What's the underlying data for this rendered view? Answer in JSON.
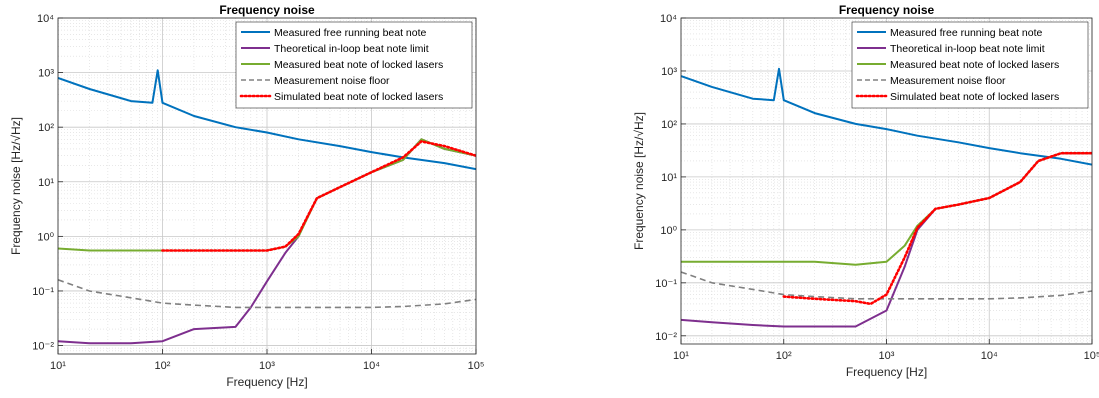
{
  "chart_data": [
    {
      "type": "line",
      "title": "Frequency noise",
      "xlabel": "Frequency [Hz]",
      "ylabel": "Frequency noise [Hz/√Hz]",
      "xscale": "log",
      "yscale": "log",
      "xlim": [
        10,
        100000
      ],
      "ylim": [
        0.007,
        10000
      ],
      "x_ticks": [
        10,
        100,
        1000,
        10000,
        100000
      ],
      "y_ticks": [
        0.01,
        0.1,
        1,
        10,
        100,
        1000,
        10000
      ],
      "grid": true,
      "legend_position": "top-right",
      "series": [
        {
          "name": "Measured free running beat note",
          "color": "#0072bd",
          "style": "solid",
          "x": [
            10,
            20,
            50,
            80,
            90,
            100,
            200,
            500,
            1000,
            2000,
            5000,
            10000,
            20000,
            50000,
            100000
          ],
          "y": [
            800,
            500,
            300,
            280,
            1100,
            280,
            160,
            100,
            80,
            60,
            45,
            35,
            28,
            22,
            17
          ]
        },
        {
          "name": "Theoretical in-loop beat note limit",
          "color": "#7e2f8e",
          "style": "solid",
          "x": [
            10,
            20,
            50,
            100,
            200,
            500,
            700,
            1000,
            1500,
            2000,
            2500,
            3000,
            5000,
            10000,
            20000,
            30000,
            50000,
            100000
          ],
          "y": [
            0.012,
            0.011,
            0.011,
            0.012,
            0.02,
            0.022,
            0.05,
            0.15,
            0.5,
            1.0,
            2.5,
            5,
            8,
            15,
            25,
            60,
            40,
            30
          ]
        },
        {
          "name": "Measured beat note of locked lasers",
          "color": "#77ac30",
          "style": "solid",
          "x": [
            10,
            20,
            50,
            100,
            200,
            500,
            1000,
            1500,
            2000,
            3000,
            5000,
            10000,
            20000,
            30000,
            50000,
            100000
          ],
          "y": [
            0.6,
            0.55,
            0.55,
            0.55,
            0.55,
            0.55,
            0.55,
            0.65,
            1.0,
            5,
            8,
            15,
            25,
            60,
            40,
            30
          ]
        },
        {
          "name": "Measurement noise floor",
          "color": "#808080",
          "style": "dashed",
          "x": [
            10,
            20,
            50,
            100,
            200,
            500,
            1000,
            2000,
            5000,
            10000,
            20000,
            50000,
            100000
          ],
          "y": [
            0.16,
            0.1,
            0.075,
            0.06,
            0.055,
            0.05,
            0.05,
            0.05,
            0.05,
            0.05,
            0.052,
            0.058,
            0.07
          ]
        },
        {
          "name": "Simulated beat note of locked lasers",
          "color": "#ff0000",
          "style": "dotted",
          "x": [
            100,
            200,
            500,
            1000,
            1500,
            2000,
            3000,
            5000,
            10000,
            20000,
            30000,
            50000,
            100000
          ],
          "y": [
            0.55,
            0.55,
            0.55,
            0.55,
            0.65,
            1.1,
            5,
            8,
            15,
            28,
            55,
            45,
            30
          ]
        }
      ]
    },
    {
      "type": "line",
      "title": "Frequency noise",
      "xlabel": "Frequency [Hz]",
      "ylabel": "Frequency noise [Hz/√Hz]",
      "xscale": "log",
      "yscale": "log",
      "xlim": [
        10,
        100000
      ],
      "ylim": [
        0.007,
        10000
      ],
      "x_ticks": [
        10,
        100,
        1000,
        10000,
        100000
      ],
      "y_ticks": [
        0.01,
        0.1,
        1,
        10,
        100,
        1000,
        10000
      ],
      "grid": true,
      "legend_position": "top-right",
      "series": [
        {
          "name": "Measured free running beat note",
          "color": "#0072bd",
          "style": "solid",
          "x": [
            10,
            20,
            50,
            80,
            90,
            100,
            200,
            500,
            1000,
            2000,
            5000,
            10000,
            20000,
            50000,
            100000
          ],
          "y": [
            800,
            500,
            300,
            280,
            1100,
            280,
            160,
            100,
            80,
            60,
            45,
            35,
            28,
            22,
            17
          ]
        },
        {
          "name": "Theoretical in-loop beat note limit",
          "color": "#7e2f8e",
          "style": "solid",
          "x": [
            10,
            20,
            50,
            100,
            200,
            500,
            1000,
            1500,
            2000,
            3000,
            5000,
            10000,
            20000,
            30000,
            50000,
            100000
          ],
          "y": [
            0.02,
            0.018,
            0.016,
            0.015,
            0.015,
            0.015,
            0.03,
            0.2,
            1.0,
            2.5,
            3,
            4,
            8,
            20,
            28,
            28
          ]
        },
        {
          "name": "Measured beat note of locked lasers",
          "color": "#77ac30",
          "style": "solid",
          "x": [
            10,
            20,
            50,
            100,
            200,
            500,
            1000,
            1500,
            2000,
            3000,
            5000,
            10000,
            20000,
            30000,
            50000,
            100000
          ],
          "y": [
            0.25,
            0.25,
            0.25,
            0.25,
            0.25,
            0.22,
            0.25,
            0.5,
            1.2,
            2.5,
            3,
            4,
            8,
            20,
            28,
            28
          ]
        },
        {
          "name": "Measurement noise floor",
          "color": "#808080",
          "style": "dashed",
          "x": [
            10,
            20,
            50,
            100,
            200,
            500,
            1000,
            2000,
            5000,
            10000,
            20000,
            50000,
            100000
          ],
          "y": [
            0.16,
            0.1,
            0.075,
            0.06,
            0.055,
            0.05,
            0.05,
            0.05,
            0.05,
            0.05,
            0.052,
            0.058,
            0.07
          ]
        },
        {
          "name": "Simulated beat note of locked lasers",
          "color": "#ff0000",
          "style": "dotted",
          "x": [
            100,
            200,
            500,
            700,
            1000,
            1500,
            2000,
            3000,
            5000,
            10000,
            20000,
            30000,
            50000,
            100000
          ],
          "y": [
            0.055,
            0.05,
            0.045,
            0.04,
            0.06,
            0.3,
            1.1,
            2.5,
            3,
            4,
            8,
            20,
            28,
            28
          ]
        }
      ]
    }
  ]
}
